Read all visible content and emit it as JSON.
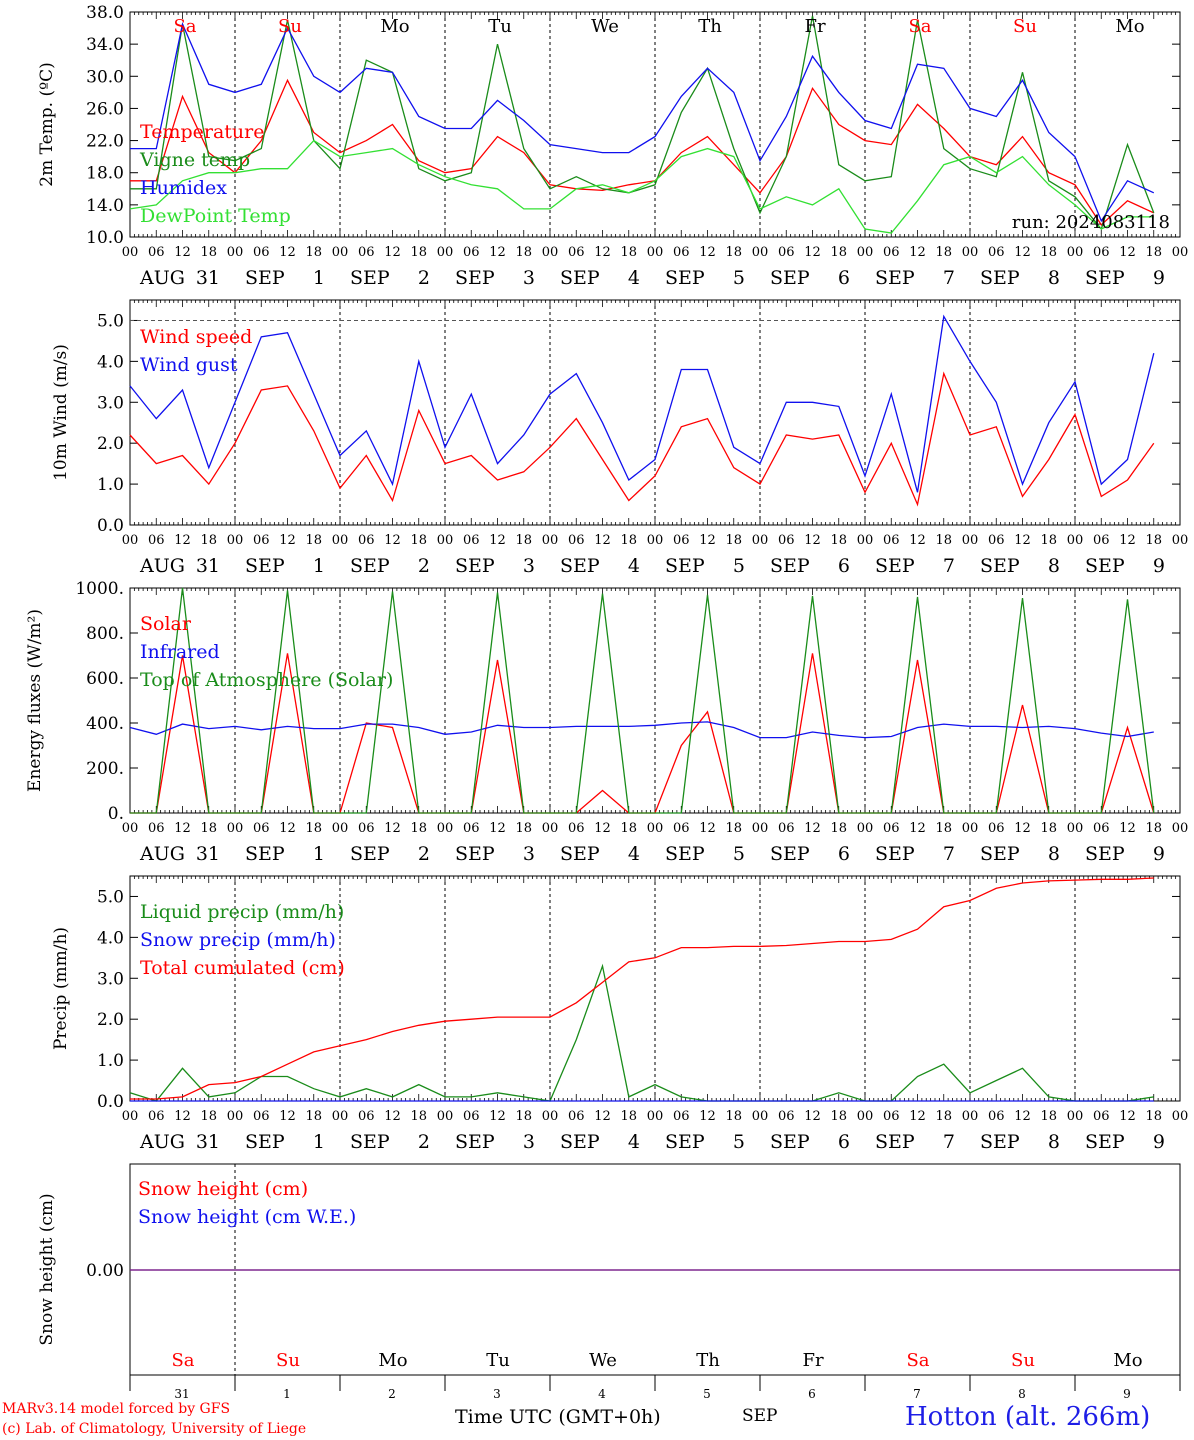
{
  "colors": {
    "red": "#ff0000",
    "green": "#1a8c1a",
    "blue": "#1010ee",
    "lightgreen": "#33e033",
    "purple": "#7a1f8a",
    "black": "#000000"
  },
  "day_names": [
    {
      "label": "Sa",
      "weekend": true
    },
    {
      "label": "Su",
      "weekend": true
    },
    {
      "label": "Mo",
      "weekend": false
    },
    {
      "label": "Tu",
      "weekend": false
    },
    {
      "label": "We",
      "weekend": false
    },
    {
      "label": "Th",
      "weekend": false
    },
    {
      "label": "Fr",
      "weekend": false
    },
    {
      "label": "Sa",
      "weekend": true
    },
    {
      "label": "Su",
      "weekend": true
    },
    {
      "label": "Mo",
      "weekend": false
    }
  ],
  "date_labels": [
    [
      "AUG",
      "31"
    ],
    [
      "SEP",
      "1"
    ],
    [
      "SEP",
      "2"
    ],
    [
      "SEP",
      "3"
    ],
    [
      "SEP",
      "4"
    ],
    [
      "SEP",
      "5"
    ],
    [
      "SEP",
      "6"
    ],
    [
      "SEP",
      "7"
    ],
    [
      "SEP",
      "8"
    ],
    [
      "SEP",
      "9"
    ]
  ],
  "hour_ticks": [
    "00",
    "06",
    "12",
    "18"
  ],
  "bottom_day_numbers": [
    "31",
    "1",
    "2",
    "3",
    "4",
    "5",
    "6",
    "7",
    "8",
    "9"
  ],
  "footer": {
    "credit_line1": "MARv3.14 model forced by GFS",
    "credit_line2": "(c) Lab. of Climatology, University of Liege",
    "xaxis_title": "Time UTC (GMT+0h)",
    "month": "SEP",
    "station": "Hotton (alt. 266m)"
  },
  "chart_data": [
    {
      "type": "line",
      "ylabel": "2m Temp. (ºC)",
      "ylim": [
        10.0,
        38.0
      ],
      "yticks": [
        "10.0",
        "14.0",
        "18.0",
        "22.0",
        "26.0",
        "30.0",
        "34.0",
        "38.0"
      ],
      "x": "hours from 2024-08-31 00 UTC, one point every 6 h, 0 to 240",
      "annotation": "run: 2024083118",
      "series": [
        {
          "name": "Temperature",
          "color": "red",
          "values": [
            17,
            17,
            27.5,
            20.5,
            18,
            22,
            29.5,
            23,
            20.5,
            22,
            24,
            19.5,
            18,
            18.5,
            22.5,
            20.5,
            16.5,
            16,
            15.8,
            16.5,
            17,
            20.5,
            22.5,
            19,
            15.5,
            20,
            28.5,
            24,
            22,
            21.5,
            26.5,
            23.5,
            20,
            19,
            22.5,
            18,
            16.5,
            11.5,
            14.5,
            13
          ]
        },
        {
          "name": "Vigne temp",
          "color": "green",
          "values": [
            16,
            16,
            36.5,
            20,
            19.5,
            21,
            37,
            22,
            18.5,
            32,
            30.5,
            18.5,
            17,
            18,
            34,
            21,
            16,
            17.5,
            16,
            15.5,
            16.5,
            25.5,
            31,
            21,
            13,
            20,
            37.5,
            19,
            17,
            17.5,
            37,
            21,
            18.5,
            17.5,
            30.5,
            17,
            15,
            11,
            21.5,
            13
          ]
        },
        {
          "name": "Humidex",
          "color": "blue",
          "values": [
            21,
            21,
            36.5,
            29,
            28,
            29,
            36,
            30,
            28,
            31,
            30.5,
            25,
            23.5,
            23.5,
            27,
            24.5,
            21.5,
            21,
            20.5,
            20.5,
            22.5,
            27.5,
            31,
            28,
            19.5,
            25,
            32.5,
            28,
            24.5,
            23.5,
            31.5,
            31,
            26,
            25,
            29.5,
            23,
            20,
            12,
            17,
            15.5
          ]
        },
        {
          "name": "DewPoint Temp",
          "color": "lightgreen",
          "values": [
            13.5,
            14,
            17,
            18,
            18,
            18.5,
            18.5,
            22,
            20,
            20.5,
            21,
            19,
            17.5,
            16.5,
            16,
            13.5,
            13.5,
            16,
            16.5,
            15.5,
            17,
            20,
            21,
            20,
            13.5,
            15,
            14,
            16,
            11,
            10.5,
            14.5,
            19,
            20,
            18,
            20,
            16.5,
            14,
            11,
            12.5,
            12.5
          ]
        }
      ]
    },
    {
      "type": "line",
      "ylabel": "10m Wind (m/s)",
      "ylim": [
        0.0,
        5.5
      ],
      "yticks": [
        "0.0",
        "1.0",
        "2.0",
        "3.0",
        "4.0",
        "5.0"
      ],
      "reference_line": 5.0,
      "x": "hours from 2024-08-31 00 UTC, one point every 6 h, 0 to 240",
      "series": [
        {
          "name": "Wind speed",
          "color": "red",
          "values": [
            2.2,
            1.5,
            1.7,
            1.0,
            2.0,
            3.3,
            3.4,
            2.3,
            0.9,
            1.7,
            0.6,
            2.8,
            1.5,
            1.7,
            1.1,
            1.3,
            1.9,
            2.6,
            1.6,
            0.6,
            1.2,
            2.4,
            2.6,
            1.4,
            1.0,
            2.2,
            2.1,
            2.2,
            0.8,
            2.0,
            0.5,
            3.7,
            2.2,
            2.4,
            0.7,
            1.6,
            2.7,
            0.7,
            1.1,
            2.0
          ]
        },
        {
          "name": "Wind gust",
          "color": "blue",
          "values": [
            3.4,
            2.6,
            3.3,
            1.4,
            3.0,
            4.6,
            4.7,
            3.2,
            1.7,
            2.3,
            1.0,
            4.0,
            1.9,
            3.2,
            1.5,
            2.2,
            3.2,
            3.7,
            2.5,
            1.1,
            1.6,
            3.8,
            3.8,
            1.9,
            1.5,
            3.0,
            3.0,
            2.9,
            1.2,
            3.2,
            0.8,
            5.1,
            4.0,
            3.0,
            1.0,
            2.5,
            3.5,
            1.0,
            1.6,
            4.2
          ]
        }
      ]
    },
    {
      "type": "line",
      "ylabel": "Energy fluxes (W/m²)",
      "ylim": [
        0,
        1000
      ],
      "yticks": [
        "0.",
        "200.",
        "400.",
        "600.",
        "800.",
        "1000."
      ],
      "x": "hours from 2024-08-31 00 UTC, one point every 6 h, 0 to 240",
      "series": [
        {
          "name": "Solar",
          "color": "red",
          "values": [
            0,
            0,
            700,
            0,
            0,
            0,
            710,
            0,
            0,
            400,
            380,
            0,
            0,
            0,
            680,
            0,
            0,
            0,
            100,
            0,
            0,
            300,
            450,
            0,
            0,
            0,
            710,
            0,
            0,
            0,
            680,
            0,
            0,
            0,
            480,
            0,
            0,
            0,
            380,
            0
          ]
        },
        {
          "name": "Infrared",
          "color": "blue",
          "values": [
            380,
            350,
            395,
            375,
            385,
            370,
            385,
            375,
            375,
            395,
            395,
            380,
            350,
            360,
            390,
            380,
            380,
            385,
            385,
            385,
            390,
            400,
            405,
            380,
            335,
            335,
            360,
            345,
            335,
            340,
            380,
            395,
            385,
            385,
            380,
            385,
            375,
            355,
            340,
            360
          ]
        },
        {
          "name": "Top of Atmosphere (Solar)",
          "color": "green",
          "values": [
            0,
            0,
            1000,
            0,
            0,
            0,
            990,
            0,
            0,
            0,
            985,
            0,
            0,
            0,
            980,
            0,
            0,
            0,
            975,
            0,
            0,
            0,
            970,
            0,
            0,
            0,
            965,
            0,
            0,
            0,
            960,
            0,
            0,
            0,
            955,
            0,
            0,
            0,
            950,
            0
          ]
        }
      ]
    },
    {
      "type": "line",
      "ylabel": "Precip (mm/h)",
      "ylim": [
        0.0,
        5.5
      ],
      "yticks": [
        "0.0",
        "1.0",
        "2.0",
        "3.0",
        "4.0",
        "5.0"
      ],
      "x": "hours from 2024-08-31 00 UTC, one point every 6 h, 0 to 240",
      "series": [
        {
          "name": "Liquid precip (mm/h)",
          "color": "green",
          "values": [
            0.2,
            0.0,
            0.8,
            0.1,
            0.2,
            0.6,
            0.6,
            0.3,
            0.1,
            0.3,
            0.1,
            0.4,
            0.1,
            0.1,
            0.2,
            0.1,
            0.0,
            1.5,
            3.3,
            0.1,
            0.4,
            0.1,
            0.0,
            0.0,
            0.0,
            0.0,
            0.0,
            0.2,
            0.0,
            0.0,
            0.6,
            0.9,
            0.2,
            0.5,
            0.8,
            0.1,
            0.0,
            0.0,
            0.0,
            0.1
          ]
        },
        {
          "name": "Snow precip (mm/h)",
          "color": "blue",
          "values": [
            0,
            0,
            0,
            0,
            0,
            0,
            0,
            0,
            0,
            0,
            0,
            0,
            0,
            0,
            0,
            0,
            0,
            0,
            0,
            0,
            0,
            0,
            0,
            0,
            0,
            0,
            0,
            0,
            0,
            0,
            0,
            0,
            0,
            0,
            0,
            0,
            0,
            0,
            0,
            0
          ]
        },
        {
          "name": "Total cumulated (cm)",
          "color": "red",
          "values": [
            0.05,
            0.05,
            0.1,
            0.4,
            0.45,
            0.6,
            0.9,
            1.2,
            1.35,
            1.5,
            1.7,
            1.85,
            1.95,
            2.0,
            2.05,
            2.05,
            2.05,
            2.4,
            2.9,
            3.4,
            3.5,
            3.75,
            3.75,
            3.78,
            3.78,
            3.8,
            3.85,
            3.9,
            3.9,
            3.95,
            4.2,
            4.75,
            4.9,
            5.2,
            5.33,
            5.38,
            5.4,
            5.42,
            5.42,
            5.45
          ]
        }
      ]
    },
    {
      "type": "line",
      "ylabel": "Snow height (cm)",
      "yticks": [
        "0.00"
      ],
      "x": "hours from 2024-08-31 00 UTC, one point every 6 h, 0 to 240",
      "series": [
        {
          "name": "Snow height (cm)",
          "color": "red",
          "values": [
            0,
            0
          ]
        },
        {
          "name": "Snow height (cm W.E.)",
          "color": "blue",
          "values": [
            0,
            0
          ]
        }
      ]
    }
  ]
}
